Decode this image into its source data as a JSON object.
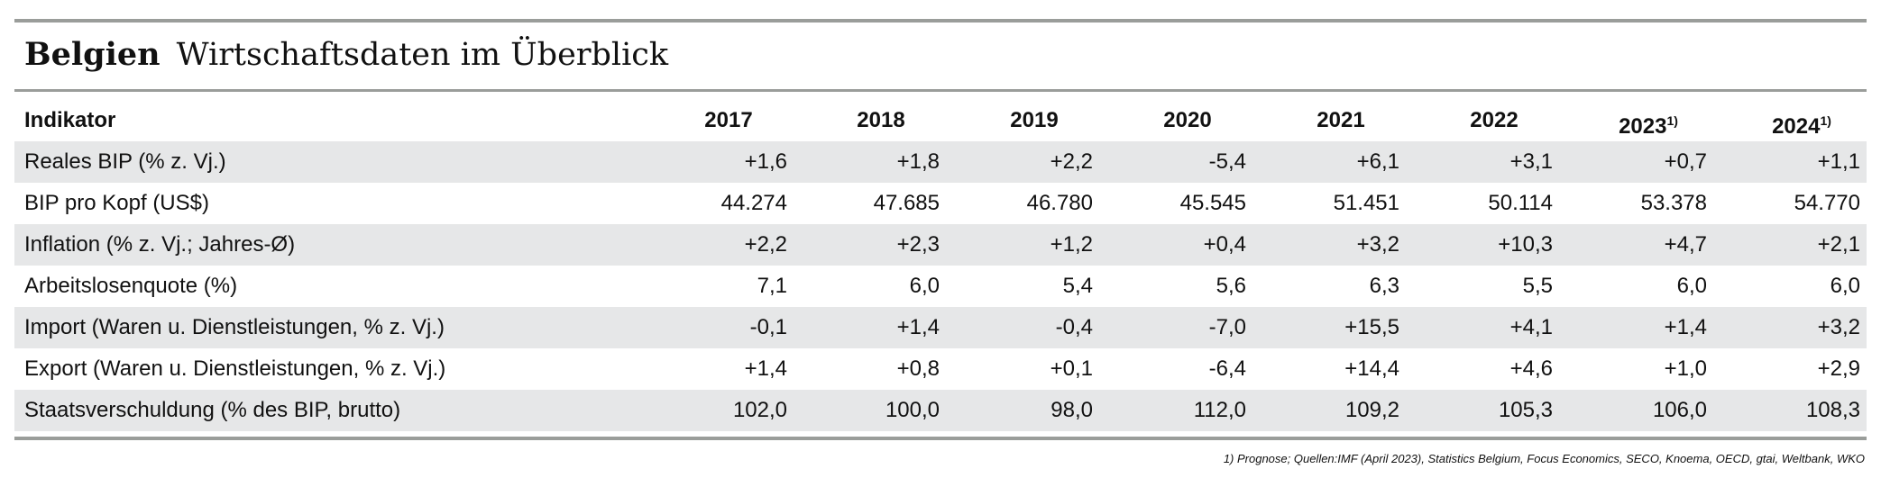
{
  "title": {
    "country": "Belgien",
    "subtitle": "Wirtschaftsdaten im Überblick"
  },
  "table": {
    "first_column": "Indikator",
    "columns": [
      {
        "label": "2017"
      },
      {
        "label": "2018"
      },
      {
        "label": "2019"
      },
      {
        "label": "2020"
      },
      {
        "label": "2021"
      },
      {
        "label": "2022"
      },
      {
        "label": "2023",
        "note": "1)"
      },
      {
        "label": "2024",
        "note": "1)"
      }
    ],
    "rows": [
      {
        "label": "Reales BIP (% z. Vj.)",
        "values": [
          "+1,6",
          "+1,8",
          "+2,2",
          "-5,4",
          "+6,1",
          "+3,1",
          "+0,7",
          "+1,1"
        ]
      },
      {
        "label": "BIP pro Kopf (US$)",
        "values": [
          "44.274",
          "47.685",
          "46.780",
          "45.545",
          "51.451",
          "50.114",
          "53.378",
          "54.770"
        ]
      },
      {
        "label": "Inflation (% z. Vj.; Jahres-Ø)",
        "values": [
          "+2,2",
          "+2,3",
          "+1,2",
          "+0,4",
          "+3,2",
          "+10,3",
          "+4,7",
          "+2,1"
        ]
      },
      {
        "label": "Arbeitslosenquote (%)",
        "values": [
          "7,1",
          "6,0",
          "5,4",
          "5,6",
          "6,3",
          "5,5",
          "6,0",
          "6,0"
        ]
      },
      {
        "label": "Import (Waren u. Dienstleistungen, % z. Vj.)",
        "values": [
          "-0,1",
          "+1,4",
          "-0,4",
          "-7,0",
          "+15,5",
          "+4,1",
          "+1,4",
          "+3,2"
        ]
      },
      {
        "label": "Export (Waren u. Dienstleistungen, % z. Vj.)",
        "values": [
          "+1,4",
          "+0,8",
          "+0,1",
          "-6,4",
          "+14,4",
          "+4,6",
          "+1,0",
          "+2,9"
        ]
      },
      {
        "label": "Staatsverschuldung (% des BIP, brutto)",
        "values": [
          "102,0",
          "100,0",
          "98,0",
          "112,0",
          "109,2",
          "105,3",
          "106,0",
          "108,3"
        ]
      }
    ]
  },
  "footnote": "1) Prognose; Quellen:IMF (April 2023), Statistics Belgium, Focus Economics, SECO, Knoema, OECD, gtai, Weltbank, WKO"
}
